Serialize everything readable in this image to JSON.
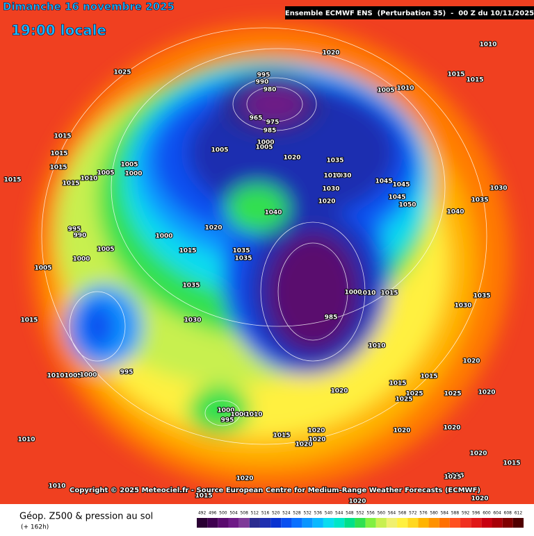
{
  "header": {
    "date": "Dimanche 16 novembre 2025",
    "time": "19:00 locale",
    "model": "Ensemble ECMWF ENS  (Perturbation 35)  -  00 Z du 10/11/2025"
  },
  "footer": {
    "copyright": "Copyright © 2025 Meteociel.fr - Source European Centre for Medium-Range Weather Forecasts (ECMWF)"
  },
  "legend": {
    "title": "Géop. Z500 & pression au sol",
    "lead": "(+ 162h)",
    "scale": [
      {
        "value": 492,
        "color": "#2a0033"
      },
      {
        "value": 496,
        "color": "#3f004f"
      },
      {
        "value": 500,
        "color": "#5a0a6e"
      },
      {
        "value": 504,
        "color": "#6e1a86"
      },
      {
        "value": 508,
        "color": "#7e3a98"
      },
      {
        "value": 512,
        "color": "#2b2b8f"
      },
      {
        "value": 516,
        "color": "#1f2fb0"
      },
      {
        "value": 520,
        "color": "#0a32d0"
      },
      {
        "value": 524,
        "color": "#0a4ff0"
      },
      {
        "value": 528,
        "color": "#0a70ff"
      },
      {
        "value": 532,
        "color": "#0a95ff"
      },
      {
        "value": 536,
        "color": "#0ab8ff"
      },
      {
        "value": 540,
        "color": "#0adcf0"
      },
      {
        "value": 544,
        "color": "#00e6c8"
      },
      {
        "value": 548,
        "color": "#00e08a"
      },
      {
        "value": 552,
        "color": "#30e050"
      },
      {
        "value": 556,
        "color": "#80f040"
      },
      {
        "value": 560,
        "color": "#c8f050"
      },
      {
        "value": 564,
        "color": "#f0f070"
      },
      {
        "value": 568,
        "color": "#fff040"
      },
      {
        "value": 572,
        "color": "#ffd820"
      },
      {
        "value": 576,
        "color": "#ffb400"
      },
      {
        "value": 580,
        "color": "#ff9200"
      },
      {
        "value": 584,
        "color": "#ff7000"
      },
      {
        "value": 588,
        "color": "#ff5020"
      },
      {
        "value": 592,
        "color": "#f03020"
      },
      {
        "value": 596,
        "color": "#e01818"
      },
      {
        "value": 600,
        "color": "#c80010"
      },
      {
        "value": 604,
        "color": "#a80008"
      },
      {
        "value": 608,
        "color": "#800000"
      },
      {
        "value": 612,
        "color": "#500000"
      }
    ]
  },
  "isobars": {
    "labels": [
      1025,
      1020,
      1010,
      1015,
      1015,
      1005,
      1010,
      995,
      990,
      980,
      965,
      975,
      985,
      1000,
      1005,
      1005,
      1020,
      1035,
      1030,
      1010,
      1030,
      1020,
      1045,
      1045,
      1045,
      1050,
      1040,
      1040,
      1020,
      1035,
      1035,
      1000,
      1015,
      1035,
      1030,
      1010,
      1015,
      1010,
      1020,
      1015,
      1025,
      1025,
      1015,
      1025,
      1020,
      1020,
      1030,
      1035,
      1030,
      1035,
      1015,
      1015,
      1015,
      1015,
      1015,
      1010,
      1005,
      1005,
      1000,
      995,
      990,
      1005,
      1000,
      1005,
      1015,
      995,
      1010,
      1005,
      1000,
      1000,
      995,
      1000,
      1010,
      1015,
      1020,
      1020,
      1020,
      1010,
      1010,
      1015,
      1020,
      1020,
      1020,
      1020,
      1015,
      1015,
      1020,
      1025,
      1020,
      985,
      1000
    ]
  }
}
